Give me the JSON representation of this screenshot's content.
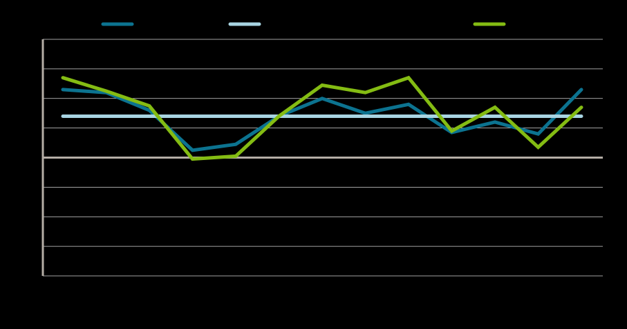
{
  "chart_data": {
    "type": "line",
    "title": "",
    "xlabel": "",
    "ylabel": "",
    "x": [
      1,
      2,
      3,
      4,
      5,
      6,
      7,
      8,
      9,
      10,
      11,
      12,
      13
    ],
    "ylim": [
      -4,
      4
    ],
    "yticks": [
      -4,
      -3,
      -2,
      -1,
      0,
      1,
      2,
      3,
      4
    ],
    "grid": true,
    "legend": "top",
    "series": [
      {
        "values": [
          2.3,
          2.2,
          1.6,
          0.25,
          0.45,
          1.4,
          2.0,
          1.5,
          1.8,
          0.85,
          1.2,
          0.8,
          2.3
        ],
        "color": "#0c7390"
      },
      {
        "values": [
          1.4,
          1.4,
          1.4,
          1.4,
          1.4,
          1.4,
          1.4,
          1.4,
          1.4,
          1.4,
          1.4,
          1.4,
          1.4
        ],
        "color": "#a8d4e2"
      },
      {
        "values": [
          2.7,
          2.25,
          1.75,
          -0.05,
          0.05,
          1.4,
          2.45,
          2.2,
          2.7,
          0.9,
          1.7,
          0.35,
          1.7
        ],
        "color": "#84bc13"
      }
    ],
    "axis_color": "#b5aea6",
    "grid_color": "#ffffff"
  }
}
